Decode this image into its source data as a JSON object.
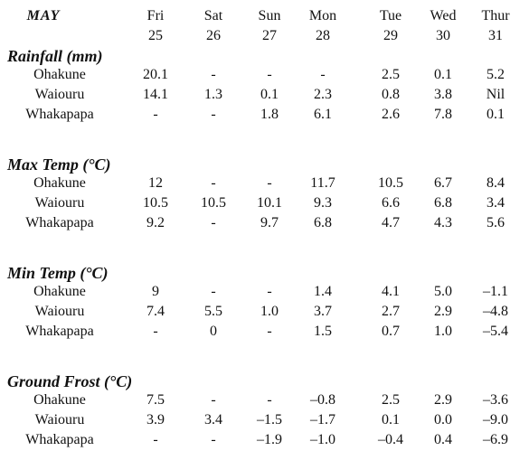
{
  "header": {
    "month": "MAY",
    "days": [
      {
        "name": "Fri",
        "date": "25"
      },
      {
        "name": "Sat",
        "date": "26"
      },
      {
        "name": "Sun",
        "date": "27"
      },
      {
        "name": "Mon",
        "date": "28"
      },
      {
        "name": "Tue",
        "date": "29"
      },
      {
        "name": "Wed",
        "date": "30"
      },
      {
        "name": "Thur",
        "date": "31"
      }
    ]
  },
  "sections": [
    {
      "title": "Rainfall (mm)",
      "rows": [
        {
          "label": "Ohakune",
          "values": [
            "20.1",
            "-",
            "-",
            "-",
            "2.5",
            "0.1",
            "5.2"
          ]
        },
        {
          "label": "Waiouru",
          "values": [
            "14.1",
            "1.3",
            "0.1",
            "2.3",
            "0.8",
            "3.8",
            "Nil"
          ]
        },
        {
          "label": "Whakapapa",
          "values": [
            "-",
            "-",
            "1.8",
            "6.1",
            "2.6",
            "7.8",
            "0.1"
          ]
        }
      ]
    },
    {
      "title": "Max Temp (°C)",
      "rows": [
        {
          "label": "Ohakune",
          "values": [
            "12",
            "-",
            "-",
            "11.7",
            "10.5",
            "6.7",
            "8.4"
          ]
        },
        {
          "label": "Waiouru",
          "values": [
            "10.5",
            "10.5",
            "10.1",
            "9.3",
            "6.6",
            "6.8",
            "3.4"
          ]
        },
        {
          "label": "Whakapapa",
          "values": [
            "9.2",
            "-",
            "9.7",
            "6.8",
            "4.7",
            "4.3",
            "5.6"
          ]
        }
      ]
    },
    {
      "title": "Min Temp (°C)",
      "rows": [
        {
          "label": "Ohakune",
          "values": [
            "9",
            "-",
            "-",
            "1.4",
            "4.1",
            "5.0",
            "–1.1"
          ]
        },
        {
          "label": "Waiouru",
          "values": [
            "7.4",
            "5.5",
            "1.0",
            "3.7",
            "2.7",
            "2.9",
            "–4.8"
          ]
        },
        {
          "label": "Whakapapa",
          "values": [
            "-",
            "0",
            "-",
            "1.5",
            "0.7",
            "1.0",
            "–5.4"
          ]
        }
      ]
    },
    {
      "title": "Ground Frost (°C)",
      "rows": [
        {
          "label": "Ohakune",
          "values": [
            "7.5",
            "-",
            "-",
            "–0.8",
            "2.5",
            "2.9",
            "–3.6"
          ]
        },
        {
          "label": "Waiouru",
          "values": [
            "3.9",
            "3.4",
            "–1.5",
            "–1.7",
            "0.1",
            "0.0",
            "–9.0"
          ]
        },
        {
          "label": "Whakapapa",
          "values": [
            "-",
            "-",
            "–1.9",
            "–1.0",
            "–0.4",
            "0.4",
            "–6.9"
          ]
        }
      ]
    }
  ]
}
